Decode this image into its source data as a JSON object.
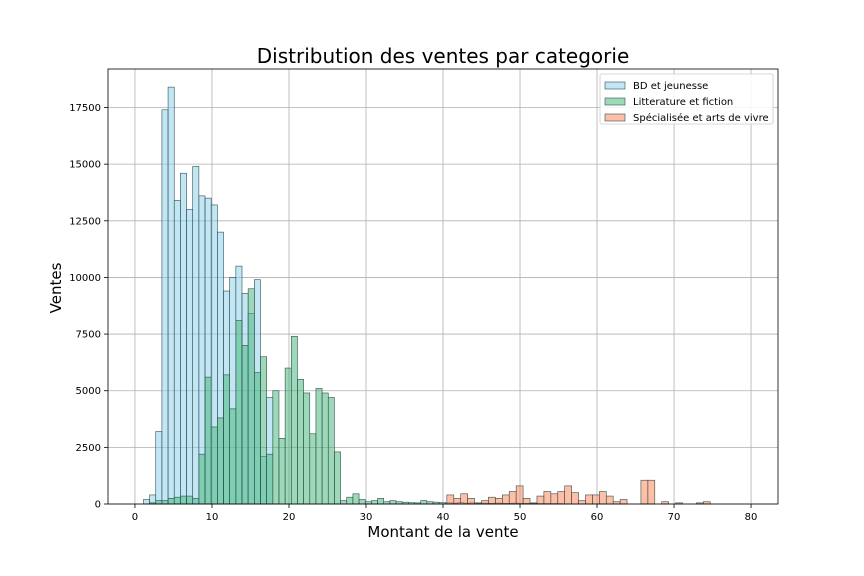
{
  "chart_data": {
    "type": "histogram",
    "title": "Distribution des ventes par categorie",
    "xlabel": "Montant de la vente",
    "ylabel": "Ventes",
    "xlim": [
      -3.5,
      83.5
    ],
    "ylim": [
      0,
      19200
    ],
    "xticks": [
      0,
      10,
      20,
      30,
      40,
      50,
      60,
      70,
      80
    ],
    "yticks": [
      0,
      2500,
      5000,
      7500,
      10000,
      12500,
      15000,
      17500
    ],
    "grid": true,
    "legend_position": "top-right",
    "series": [
      {
        "name": "BD et jeunesse",
        "color": "#87ceeb",
        "edge": "#2f4f4f",
        "bin_start": 0.3,
        "bin_width": 0.8,
        "values": [
          0,
          200,
          400,
          3200,
          17400,
          18400,
          13400,
          14600,
          13000,
          14900,
          13600,
          13500,
          13200,
          12000,
          9400,
          10000,
          10500,
          9300,
          8400,
          9900,
          2100,
          4700
        ]
      },
      {
        "name": "Litterature et fiction",
        "color": "#3cb371",
        "edge": "#2f4f4f",
        "bin_start": 0.3,
        "bin_width": 0.8,
        "values": [
          0,
          0,
          50,
          150,
          150,
          250,
          300,
          350,
          350,
          250,
          2200,
          5600,
          3400,
          3800,
          5700,
          4200,
          8100,
          7000,
          9500,
          5800,
          6500,
          2200,
          5000,
          2900,
          6000,
          7400,
          5500,
          4900,
          3100,
          5100,
          4900,
          4700,
          2300,
          150,
          300,
          450,
          200,
          100,
          150,
          250,
          100,
          150,
          100,
          80,
          60,
          50,
          150,
          100,
          80,
          60,
          50,
          40,
          60,
          40,
          50,
          40,
          40,
          30,
          40,
          30,
          30,
          40,
          30,
          30,
          30,
          20,
          20,
          20,
          20,
          10
        ]
      },
      {
        "name": "Spécialisée et arts de vivre",
        "color": "#ff7f50",
        "edge": "#2f4f4f",
        "bin_start": 40.5,
        "bin_width": 0.9,
        "values": [
          400,
          250,
          450,
          250,
          50,
          150,
          300,
          250,
          400,
          550,
          800,
          250,
          50,
          350,
          550,
          450,
          550,
          800,
          500,
          150,
          400,
          400,
          550,
          350,
          100,
          200,
          0,
          0,
          1050,
          1050,
          0,
          100,
          0,
          50,
          0,
          0,
          50,
          100
        ]
      }
    ]
  }
}
